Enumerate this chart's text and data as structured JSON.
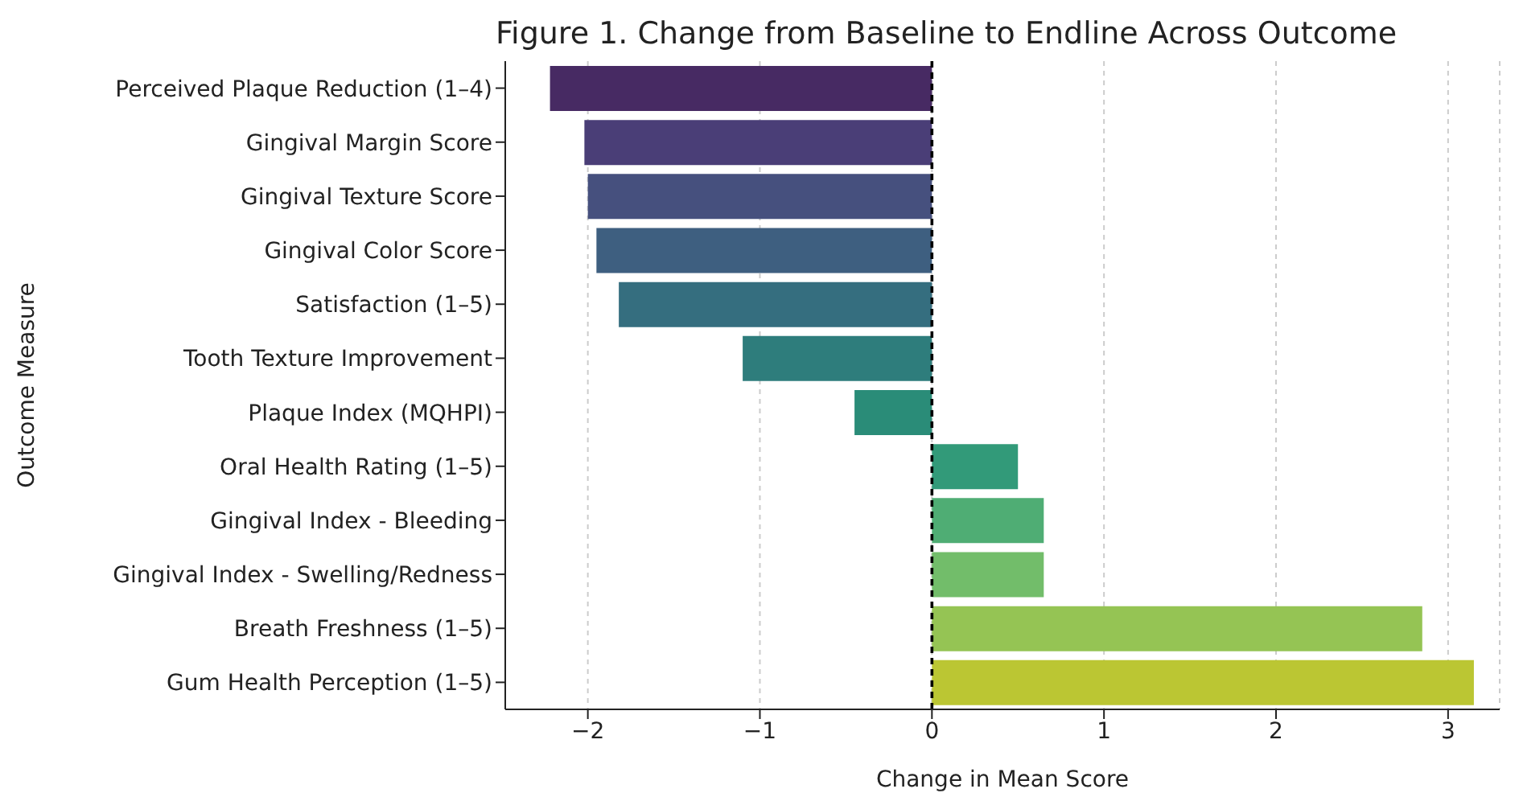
{
  "chart_data": {
    "type": "bar",
    "orientation": "horizontal",
    "title": "Figure 1. Change from Baseline to Endline Across Outcome",
    "xlabel": "Change in Mean Score",
    "ylabel": "Outcome Measure",
    "categories": [
      "Perceived Plaque Reduction (1–4)",
      "Gingival Margin Score",
      "Gingival Texture Score",
      "Gingival Color Score",
      "Satisfaction (1–5)",
      "Tooth Texture Improvement",
      "Plaque Index (MQHPI)",
      "Oral Health Rating (1–5)",
      "Gingival Index - Bleeding",
      "Gingival Index - Swelling/Redness",
      "Breath Freshness (1–5)",
      "Gum Health Perception (1–5)"
    ],
    "values": [
      -2.22,
      -2.02,
      -2.0,
      -1.95,
      -1.82,
      -1.1,
      -0.45,
      0.5,
      0.65,
      0.65,
      2.85,
      3.15
    ],
    "colors": [
      "#472a63",
      "#4a3e77",
      "#46507e",
      "#3e5f80",
      "#356e7f",
      "#2e7d7c",
      "#2a8c78",
      "#329a79",
      "#4fad74",
      "#72bd6a",
      "#95c454",
      "#bbc633"
    ],
    "xlim": [
      -2.48,
      3.3
    ],
    "xticks": [
      {
        "value": -2,
        "label": "−2"
      },
      {
        "value": -1,
        "label": "−1"
      },
      0,
      1,
      2,
      3
    ],
    "grid": "x",
    "ref_lines": [
      {
        "axis": "x",
        "value": 0,
        "color": "#000000",
        "line_style": "dashed"
      }
    ]
  }
}
